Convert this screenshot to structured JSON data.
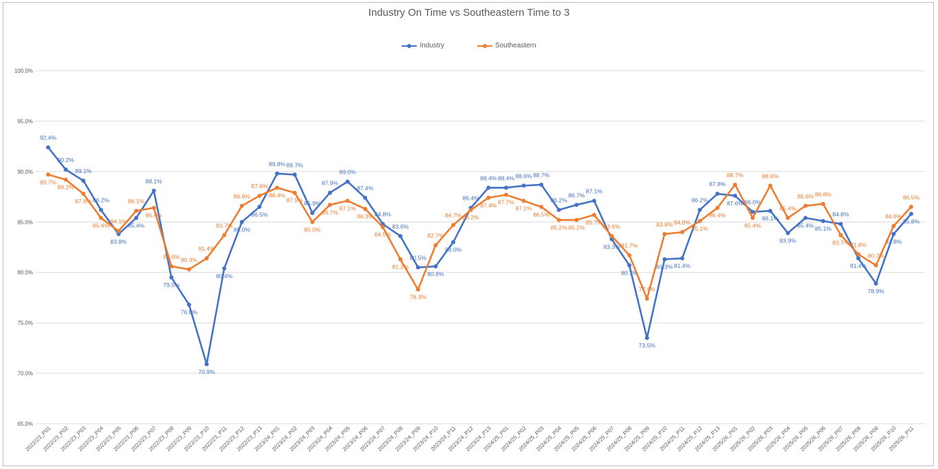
{
  "chart_data": {
    "type": "line",
    "title": "Industry On Time vs Southeastern Time to 3",
    "xlabel": "",
    "ylabel": "",
    "ylim": [
      65.0,
      100.0
    ],
    "ytick_labels": [
      "65.0%",
      "70.0%",
      "75.0%",
      "80.0%",
      "85.0%",
      "90.0%",
      "95.0%",
      "100.0%"
    ],
    "legend_position": "top-center",
    "categories": [
      "2022/23_P01",
      "2022/23_P02",
      "2022/23_P03",
      "2022/23_P04",
      "2022/23_P05",
      "2022/23_P06",
      "2022/23_P07",
      "2022/23_P08",
      "2022/23_P09",
      "2022/23_P10",
      "2022/23_P11",
      "2022/23_P12",
      "2022/23_P13",
      "2023/24_P01",
      "2023/24_P02",
      "2023/24_P03",
      "2023/24_P04",
      "2023/24_P05",
      "2023/24_P06",
      "2023/24_P07",
      "2023/24_P08",
      "2023/24_P09",
      "2023/24_P10",
      "2023/24_P11",
      "2023/24_P12",
      "2023/24_P13",
      "2024/25_P01",
      "2024/25_P02",
      "2024/25_P03",
      "2024/25_P04",
      "2024/25_P05",
      "2024/25_P06",
      "2024/25_P07",
      "2024/25_P08",
      "2024/25_P09",
      "2024/25_P10",
      "2024/25_P11",
      "2024/25_P12",
      "2024/25_P13",
      "2025/26_P01",
      "2025/26_P02",
      "2025/26_P03",
      "2025/26_P04",
      "2025/26_P05",
      "2025/26_P06",
      "2025/26_P07",
      "2025/26_P08",
      "2025/26_P09",
      "2025/26_P10",
      "2025/26_P11"
    ],
    "series": [
      {
        "name": "Industry",
        "color": "#4472c4",
        "values": [
          92.4,
          90.2,
          89.1,
          86.2,
          83.8,
          85.4,
          88.1,
          79.5,
          76.8,
          70.9,
          80.4,
          85.0,
          86.5,
          89.8,
          89.7,
          85.9,
          87.9,
          89.0,
          87.4,
          84.8,
          83.6,
          80.5,
          80.6,
          83.0,
          86.4,
          88.4,
          88.4,
          88.6,
          88.7,
          86.2,
          86.7,
          87.1,
          83.3,
          80.7,
          73.5,
          81.3,
          81.4,
          86.2,
          87.8,
          87.6,
          86.0,
          86.1,
          83.9,
          85.4,
          85.1,
          84.8,
          81.4,
          78.9,
          83.8,
          85.8
        ],
        "labels": [
          "92.4%",
          "90.2%",
          "89.1%",
          "86.2%",
          "83.8%",
          "85.4%",
          "88.1%",
          "79.5%",
          "76.8%",
          "70.9%",
          "80.4%",
          "85.0%",
          "86.5%",
          "89.8%",
          "89.7%",
          "85.9%",
          "87.9%",
          "89.0%",
          "87.4%",
          "84.8%",
          "83.6%",
          "80.5%",
          "80.6%",
          "83.0%",
          "86.4%",
          "88.4%",
          "88.4%",
          "88.6%",
          "88.7%",
          "86.2%",
          "86.7%",
          "87.1%",
          "83.3%",
          "80.7%",
          "73.5%",
          "81.3%",
          "81.4%",
          "86.2%",
          "87.8%",
          "87.6%",
          "86.0%",
          "86.1%",
          "83.9%",
          "85.4%",
          "85.1%",
          "84.8%",
          "81.4%",
          "78.9%",
          "83.8%",
          "85.8%"
        ]
      },
      {
        "name": "Southeastern",
        "color": "#ed7d31",
        "values": [
          89.7,
          89.2,
          87.8,
          85.4,
          84.1,
          86.1,
          86.4,
          80.6,
          80.3,
          81.4,
          83.7,
          86.6,
          87.6,
          88.4,
          87.9,
          85.0,
          86.7,
          87.1,
          86.3,
          84.5,
          81.3,
          78.3,
          82.7,
          84.7,
          86.2,
          87.4,
          87.7,
          87.1,
          86.5,
          85.2,
          85.2,
          85.7,
          83.6,
          81.7,
          77.4,
          83.8,
          84.0,
          85.1,
          86.4,
          88.7,
          85.4,
          88.6,
          85.4,
          86.6,
          86.8,
          83.7,
          81.8,
          80.7,
          84.6,
          86.5
        ],
        "labels": [
          "89.7%",
          "89.2%",
          "87.8%",
          "85.4%",
          "84.1%",
          "86.1%",
          "86.4%",
          "80.6%",
          "80.3%",
          "81.4%",
          "83.7%",
          "86.6%",
          "87.6%",
          "88.4%",
          "87.9%",
          "85.0%",
          "86.7%",
          "87.1%",
          "86.3%",
          "84.5%",
          "81.3%",
          "78.3%",
          "82.7%",
          "84.7%",
          "86.2%",
          "87.4%",
          "87.7%",
          "87.1%",
          "86.5%",
          "85.2%",
          "85.2%",
          "85.7%",
          "83.6%",
          "81.7%",
          "77.4%",
          "83.8%",
          "84.0%",
          "85.1%",
          "86.4%",
          "88.7%",
          "85.4%",
          "88.6%",
          "85.4%",
          "86.6%",
          "86.8%",
          "83.7%",
          "81.8%",
          "80.7%",
          "84.6%",
          "86.5%"
        ]
      }
    ]
  }
}
